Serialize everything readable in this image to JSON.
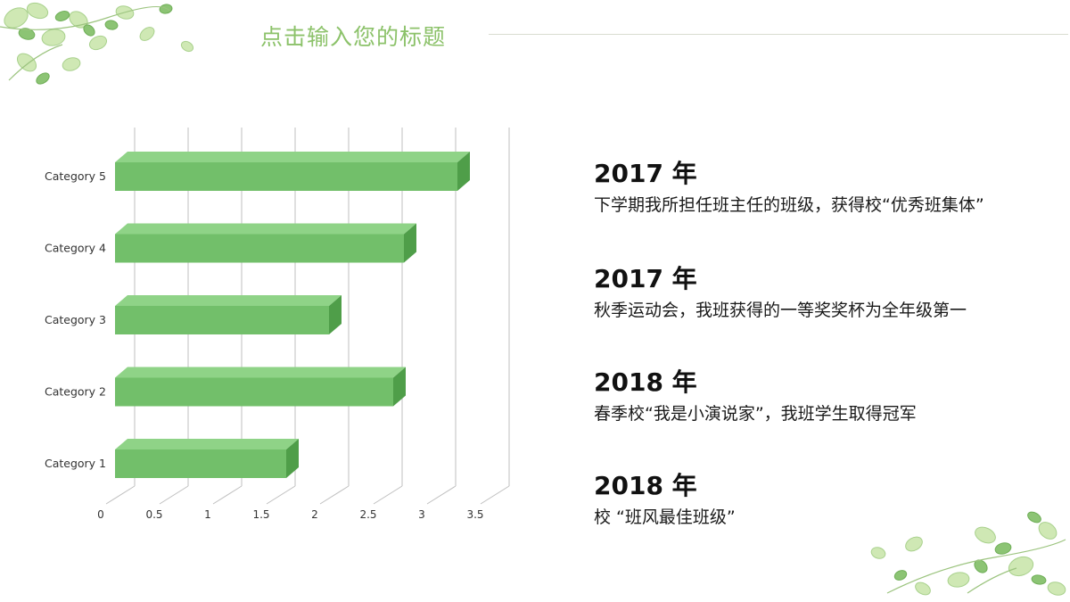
{
  "slide": {
    "title": "点击输入您的标题"
  },
  "colors": {
    "bar_front": "#72bf6a",
    "bar_top": "#8fd387",
    "bar_side": "#4f9e49",
    "title": "#8cc26a",
    "leaf_light": "#cfe8b4",
    "leaf_dark": "#8cc474"
  },
  "icons": {
    "top_left": "leaf-cluster-icon",
    "bottom_right": "leaf-cluster-icon"
  },
  "chart_data": {
    "type": "bar",
    "orientation": "horizontal",
    "style": "3d",
    "categories": [
      "Category 1",
      "Category 2",
      "Category 3",
      "Category 4",
      "Category 5"
    ],
    "values": [
      1.6,
      2.6,
      2.0,
      2.7,
      3.2
    ],
    "x_ticks": [
      "0",
      "0.5",
      "1",
      "1.5",
      "2",
      "2.5",
      "3",
      "3.5"
    ],
    "xlim": [
      0,
      3.5
    ],
    "grid": "vertical",
    "legend": "none",
    "title": "",
    "xlabel": "",
    "ylabel": ""
  },
  "timeline": [
    {
      "year": "2017 年",
      "text": "下学期我所担任班主任的班级，获得校“优秀班集体”"
    },
    {
      "year": "2017 年",
      "text": "秋季运动会，我班获得的一等奖奖杯为全年级第一"
    },
    {
      "year": "2018 年",
      "text": "春季校“我是小演说家”，我班学生取得冠军"
    },
    {
      "year": "2018 年",
      "text": "校 “班风最佳班级”"
    }
  ]
}
